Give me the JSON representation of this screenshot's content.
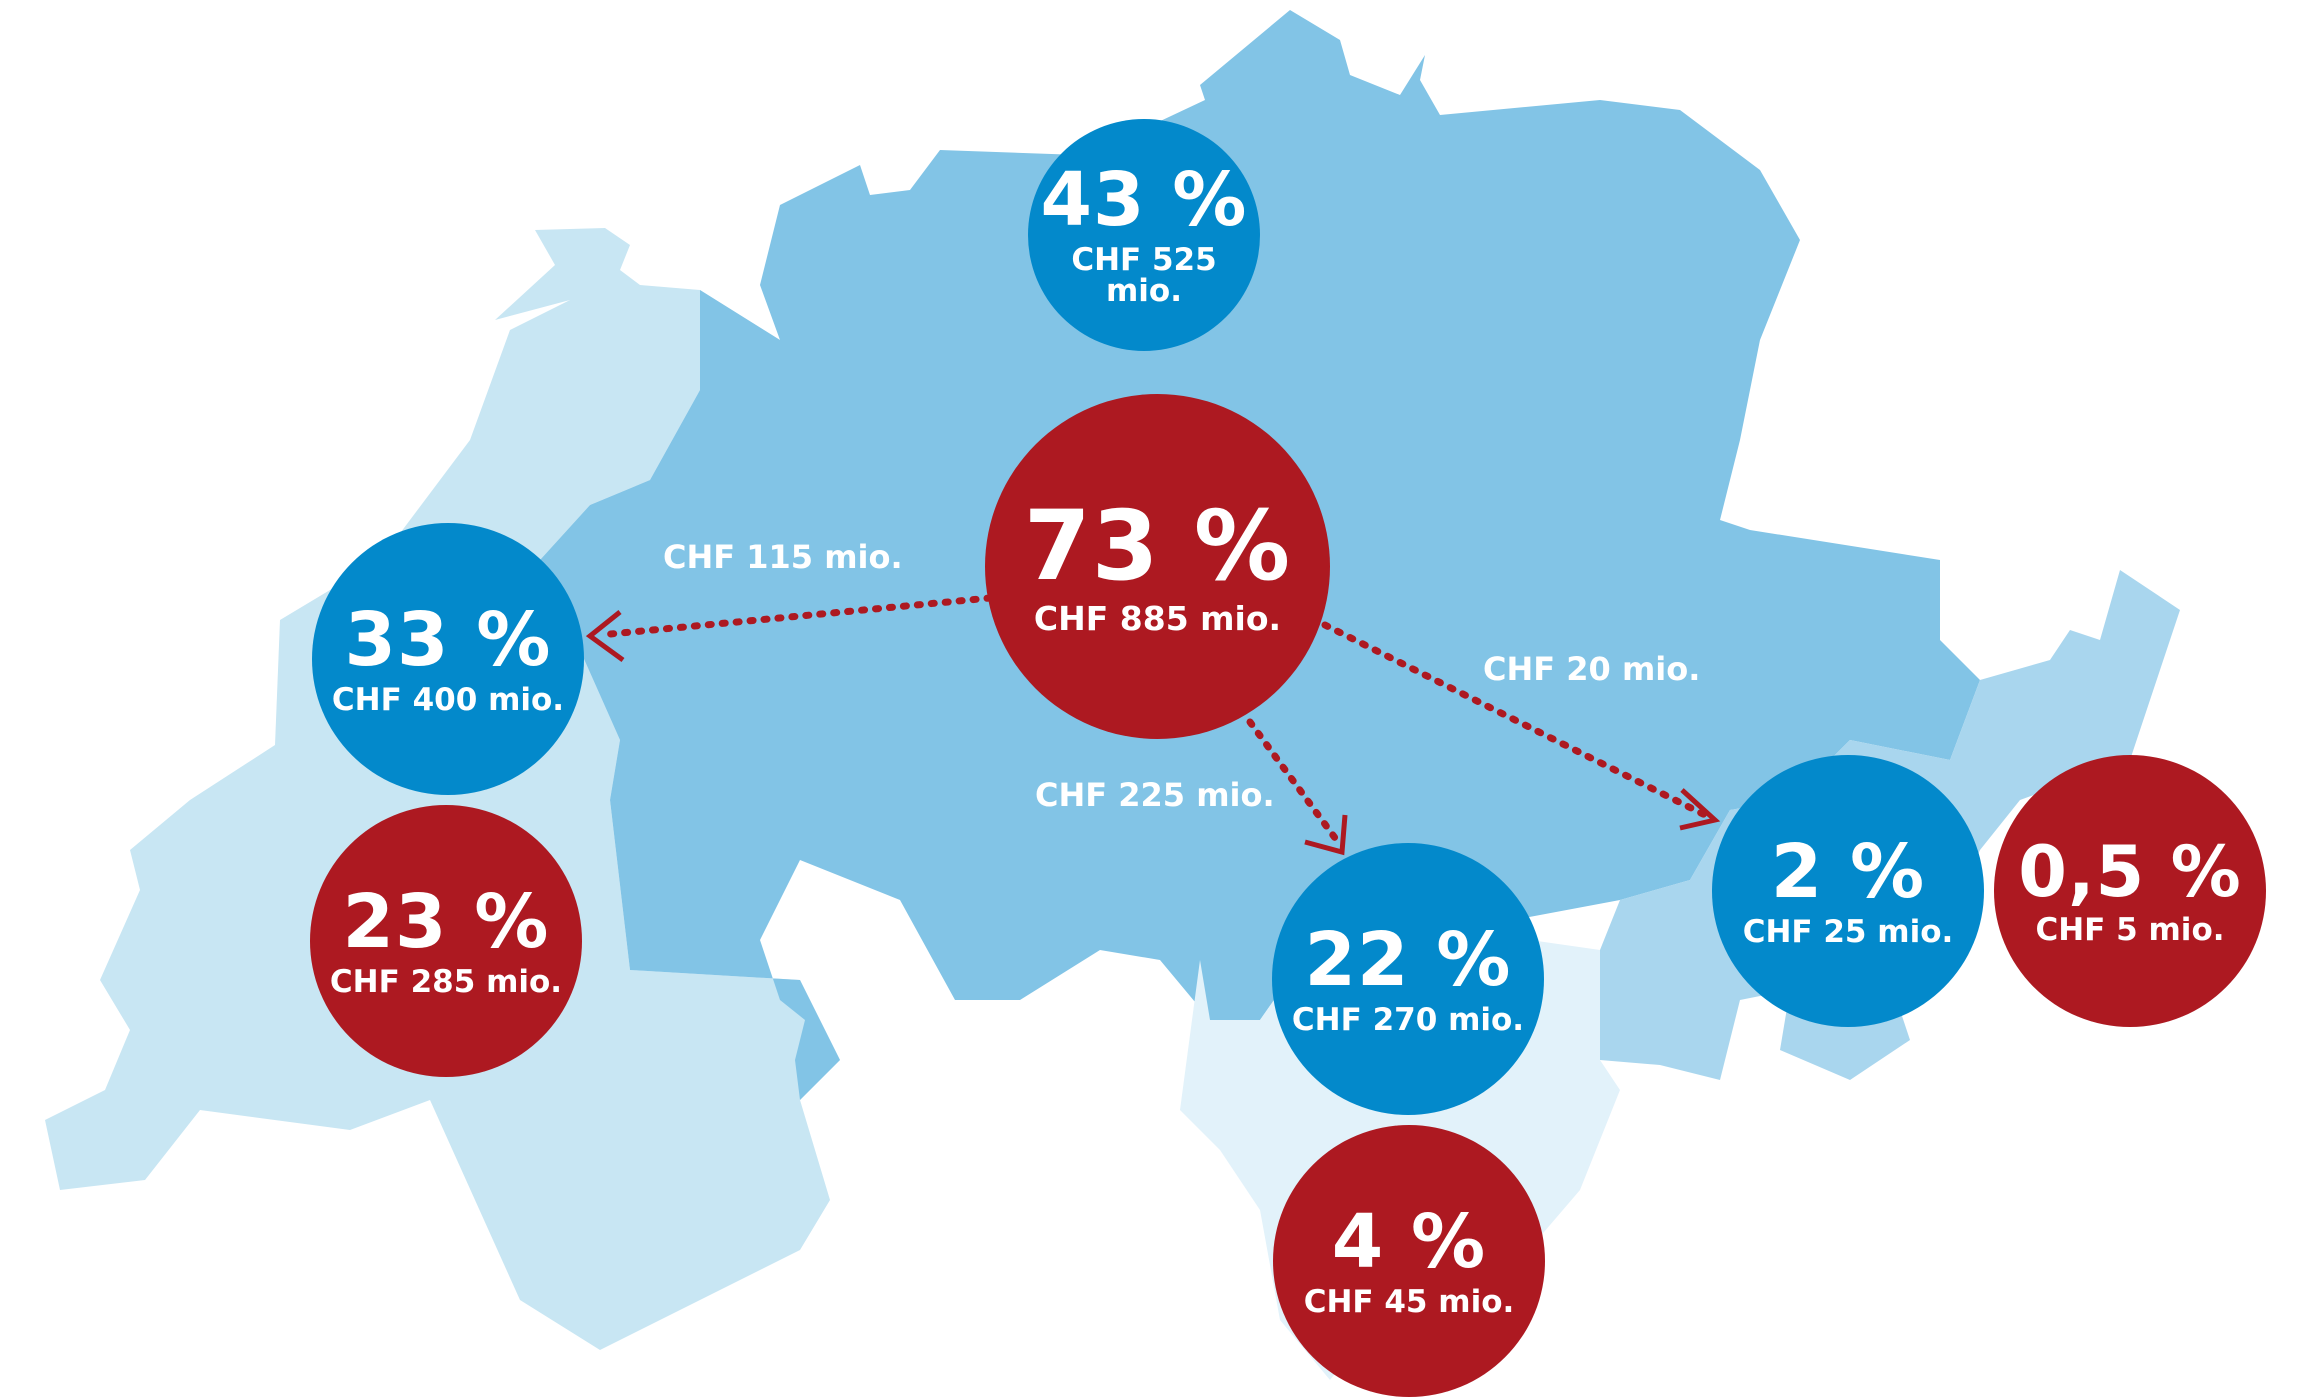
{
  "colors": {
    "language_german": "#82c4e6",
    "language_french": "#c8e6f3",
    "language_italian": "#e2f2fa",
    "language_romansh": "#a9d6ee",
    "share_bubble": "#0389cb",
    "flow_bubble": "#ad1921",
    "flow_arrow": "#ad1921"
  },
  "bubbles": {
    "german_share": {
      "percent": "43 %",
      "amount": "CHF 525 mio."
    },
    "german_flow": {
      "percent": "73 %",
      "amount": "CHF 885 mio."
    },
    "french_share": {
      "percent": "33 %",
      "amount": "CHF 400 mio."
    },
    "french_flow": {
      "percent": "23 %",
      "amount": "CHF 285 mio."
    },
    "italian_share": {
      "percent": "22 %",
      "amount": "CHF 270 mio."
    },
    "italian_flow": {
      "percent": "4 %",
      "amount": "CHF 45 mio."
    },
    "romansh_share": {
      "percent": "2 %",
      "amount": "CHF 25 mio."
    },
    "romansh_flow": {
      "percent": "0,5 %",
      "amount": "CHF 5 mio."
    }
  },
  "flows": {
    "to_french": "CHF 115 mio.",
    "to_italian": "CHF 225 mio.",
    "to_romansh": "CHF 20 mio."
  }
}
